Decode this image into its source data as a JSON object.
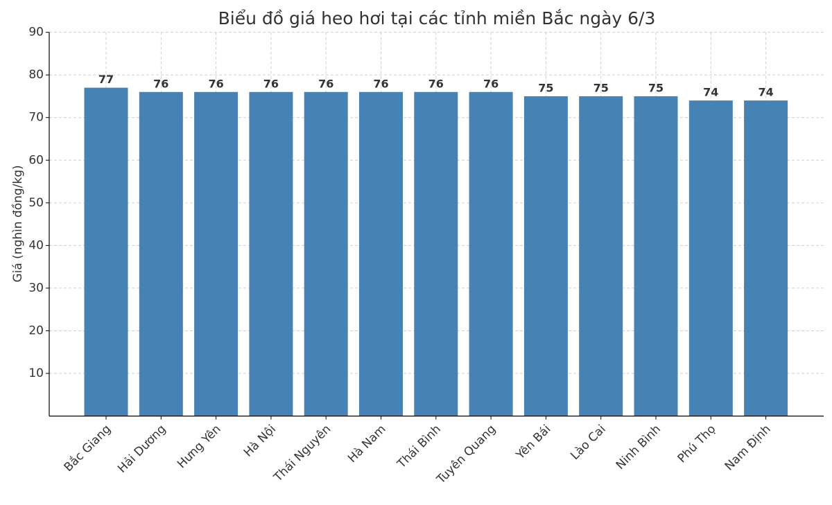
{
  "chart_data": {
    "type": "bar",
    "title": "Biểu đồ giá heo hơi tại các tỉnh miền Bắc ngày 6/3",
    "y_label": "Giá (nghìn đồng/kg)",
    "categories": [
      "Bắc Giang",
      "Hải Dương",
      "Hưng Yên",
      "Hà Nội",
      "Thái Nguyên",
      "Hà Nam",
      "Thái Bình",
      "Tuyên Quang",
      "Yên Bái",
      "Lào Cai",
      "Ninh Bình",
      "Phú Thọ",
      "Nam Định"
    ],
    "values": [
      77,
      76,
      76,
      76,
      76,
      76,
      76,
      76,
      75,
      75,
      75,
      74,
      74
    ],
    "color": "#4682b4",
    "ylim": [
      0,
      90
    ],
    "yticks": [
      10,
      20,
      30,
      40,
      50,
      60,
      70,
      80,
      90
    ],
    "grid": true
  }
}
